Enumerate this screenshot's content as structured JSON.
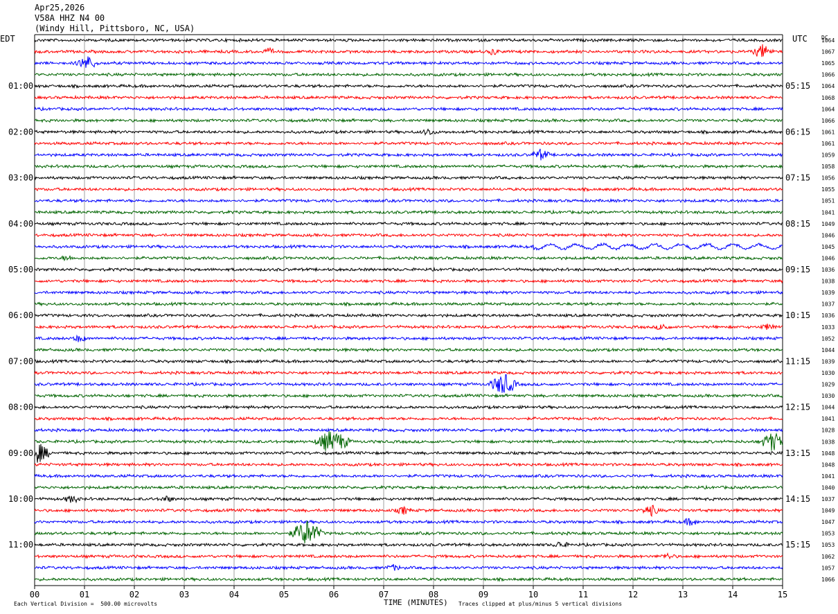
{
  "header": {
    "date": "Apr25,2026",
    "station": "V58A HHZ N4 00",
    "location": "(Windy Hill, Pittsboro, NC, USA)"
  },
  "left_axis_label": "EDT",
  "right_axis_label": "UTC",
  "dc_label": "DC",
  "footer": {
    "scale_note": "Each Vertical Division =  500.00 microvolts",
    "xlabel": "TIME (MINUTES)",
    "clip_note": "Traces clipped at plus/minus 5 vertical divisions"
  },
  "chart_data": {
    "type": "line",
    "title": "V58A HHZ N4 00",
    "xlabel": "TIME (MINUTES)",
    "xlim": [
      0,
      15
    ],
    "x_ticks": [
      "00",
      "01",
      "02",
      "03",
      "04",
      "05",
      "06",
      "07",
      "08",
      "09",
      "10",
      "11",
      "12",
      "13",
      "14",
      "15"
    ],
    "grid": "vertical lines every minute",
    "trace_colors": [
      "#000000",
      "#ff0000",
      "#0000ff",
      "#006400"
    ],
    "edt_hours": [
      "01:00",
      "02:00",
      "03:00",
      "04:00",
      "05:00",
      "06:00",
      "07:00",
      "08:00",
      "09:00",
      "10:00",
      "11:00"
    ],
    "utc_hours": [
      "05:15",
      "06:15",
      "07:15",
      "08:15",
      "09:15",
      "10:15",
      "11:15",
      "12:15",
      "13:15",
      "14:15",
      "15:15"
    ],
    "dc_offsets": [
      "1064",
      "1067",
      "1065",
      "1066",
      "1064",
      "1068",
      "1064",
      "1066",
      "1061",
      "1061",
      "1059",
      "1058",
      "1056",
      "1055",
      "1051",
      "1041",
      "1049",
      "1046",
      "1045",
      "1046",
      "1036",
      "1038",
      "1039",
      "1037",
      "1036",
      "1033",
      "1052",
      "1044",
      "1039",
      "1030",
      "1029",
      "1030",
      "1044",
      "1041",
      "1028",
      "1038",
      "1048",
      "1048",
      "1041",
      "1040",
      "1037",
      "1049",
      "1047",
      "1053",
      "1053",
      "1062",
      "1057",
      "1066"
    ],
    "events": [
      {
        "row": 1,
        "minute": 4.7,
        "amplitude": 0.6
      },
      {
        "row": 1,
        "minute": 9.2,
        "amplitude": 0.6
      },
      {
        "row": 1,
        "minute": 14.6,
        "amplitude": 1.5
      },
      {
        "row": 2,
        "minute": 1.05,
        "amplitude": 1.6
      },
      {
        "row": 8,
        "minute": 7.9,
        "amplitude": 0.7
      },
      {
        "row": 10,
        "minute": 10.15,
        "amplitude": 1.2
      },
      {
        "row": 19,
        "minute": 0.65,
        "amplitude": 0.5
      },
      {
        "row": 25,
        "minute": 12.6,
        "amplitude": 0.7
      },
      {
        "row": 25,
        "minute": 14.7,
        "amplitude": 0.6
      },
      {
        "row": 26,
        "minute": 0.9,
        "amplitude": 0.7
      },
      {
        "row": 30,
        "minute": 9.4,
        "amplitude": 2.5
      },
      {
        "row": 35,
        "minute": 5.9,
        "amplitude": 2.4
      },
      {
        "row": 35,
        "minute": 6.1,
        "amplitude": 2.0
      },
      {
        "row": 35,
        "minute": 14.8,
        "amplitude": 2.2
      },
      {
        "row": 36,
        "minute": 0.05,
        "amplitude": 2.4
      },
      {
        "row": 40,
        "minute": 0.75,
        "amplitude": 0.8
      },
      {
        "row": 40,
        "minute": 2.65,
        "amplitude": 0.6
      },
      {
        "row": 41,
        "minute": 7.4,
        "amplitude": 0.8
      },
      {
        "row": 41,
        "minute": 12.35,
        "amplitude": 1.2
      },
      {
        "row": 42,
        "minute": 13.15,
        "amplitude": 0.8
      },
      {
        "row": 43,
        "minute": 5.45,
        "amplitude": 3.0
      },
      {
        "row": 44,
        "minute": 10.55,
        "amplitude": 0.7
      },
      {
        "row": 45,
        "minute": 12.7,
        "amplitude": 0.6
      },
      {
        "row": 46,
        "minute": 7.2,
        "amplitude": 0.6
      }
    ]
  }
}
